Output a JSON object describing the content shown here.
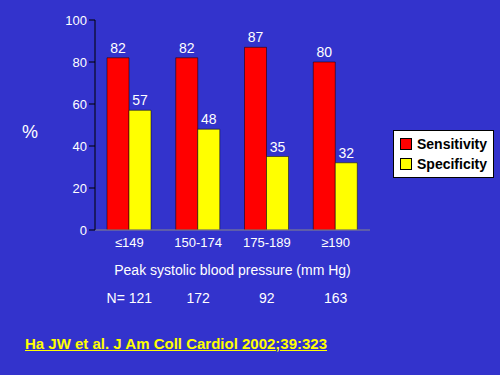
{
  "chart_data": {
    "type": "bar",
    "categories": [
      "≤149",
      "150-174",
      "175-189",
      "≥190"
    ],
    "series": [
      {
        "name": "Sensitivity",
        "color": "#ff0000",
        "values": [
          82,
          82,
          87,
          80
        ]
      },
      {
        "name": "Specificity",
        "color": "#ffff00",
        "values": [
          57,
          48,
          35,
          32
        ]
      }
    ],
    "x_label": "Peak systolic blood pressure (mm Hg)",
    "y_label": "%",
    "ylim": [
      0,
      100
    ],
    "yticks": [
      0,
      20,
      40,
      60,
      80,
      100
    ],
    "data_labels": true,
    "legend": "right",
    "sample_sizes": {
      "label": "N=",
      "values": [
        121,
        172,
        92,
        163
      ]
    },
    "annotations": [
      "Ha JW et al. J Am Coll Cardiol 2002;39:323"
    ]
  }
}
